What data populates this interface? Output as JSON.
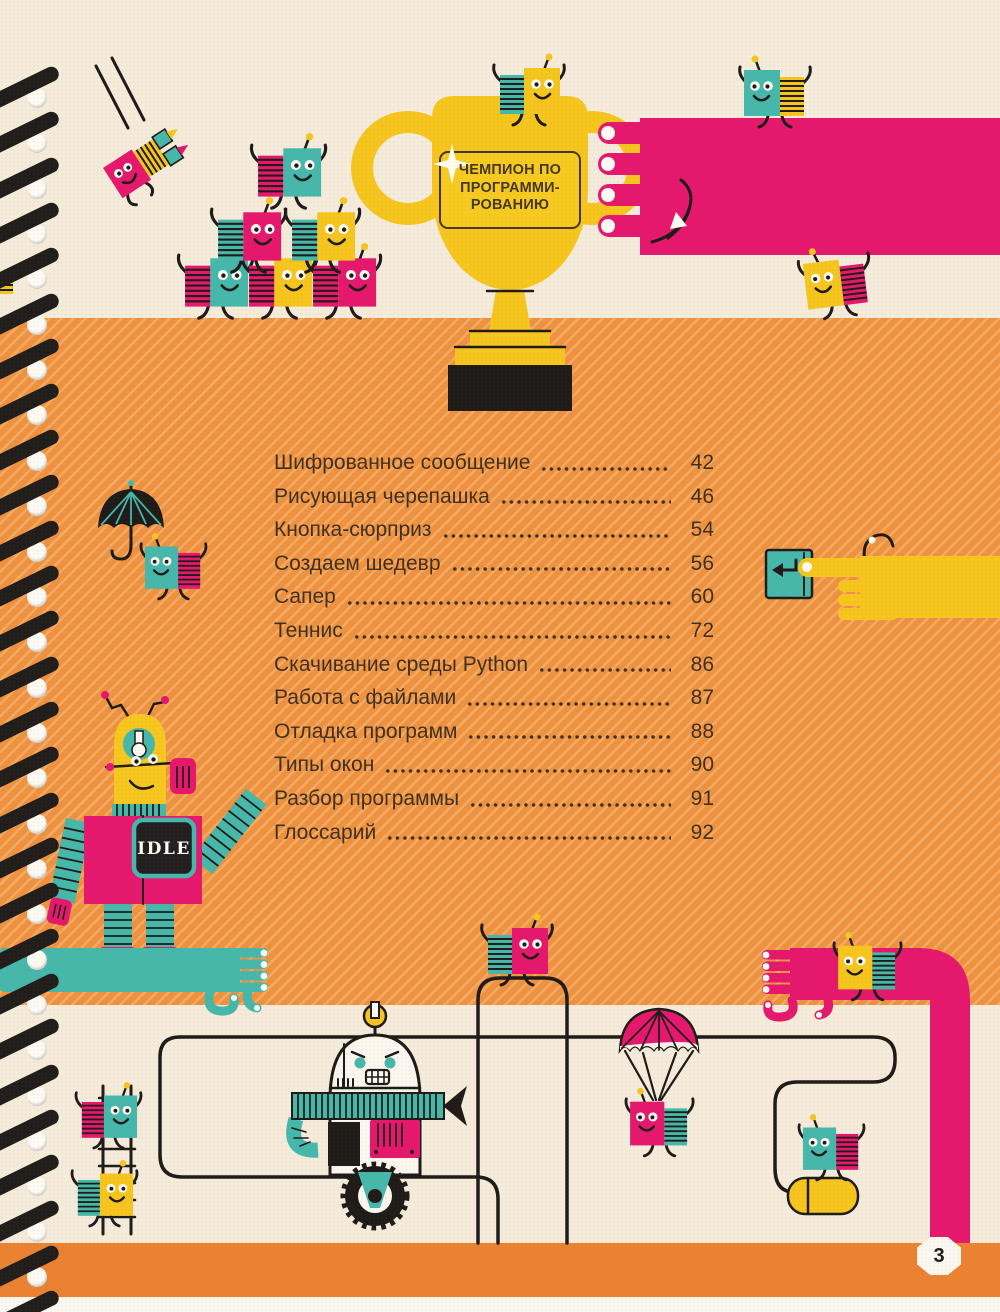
{
  "page": {
    "number": "3"
  },
  "trophy": {
    "label_line1": "ЧЕМПИОН ПО",
    "label_line2": "ПРОГРАММИ-",
    "label_line3": "РОВАНИЮ"
  },
  "idle_robot": {
    "screen_label": "IDLE"
  },
  "toc": {
    "entries": [
      {
        "title": "Шифрованное сообщение",
        "page": "42"
      },
      {
        "title": "Рисующая черепашка",
        "page": "46"
      },
      {
        "title": "Кнопка-сюрприз",
        "page": "54"
      },
      {
        "title": "Создаем шедевр",
        "page": "56"
      },
      {
        "title": "Сапер",
        "page": "60"
      },
      {
        "title": "Теннис",
        "page": "72"
      },
      {
        "title": "Скачивание среды Python",
        "page": "86"
      },
      {
        "title": "Работа с файлами",
        "page": "87"
      },
      {
        "title": "Отладка программ",
        "page": "88"
      },
      {
        "title": "Типы окон",
        "page": "90"
      },
      {
        "title": "Разбор программы",
        "page": "91"
      },
      {
        "title": "Глоссарий",
        "page": "92"
      }
    ]
  },
  "colors": {
    "orange_band": "#ef923f",
    "footer_orange": "#ea8231",
    "cream": "#f5ebdb",
    "pink": "#e5186d",
    "teal": "#45b8ab",
    "yellow": "#f6c61e",
    "ink": "#1f1b18",
    "toc_text": "#40301f"
  }
}
